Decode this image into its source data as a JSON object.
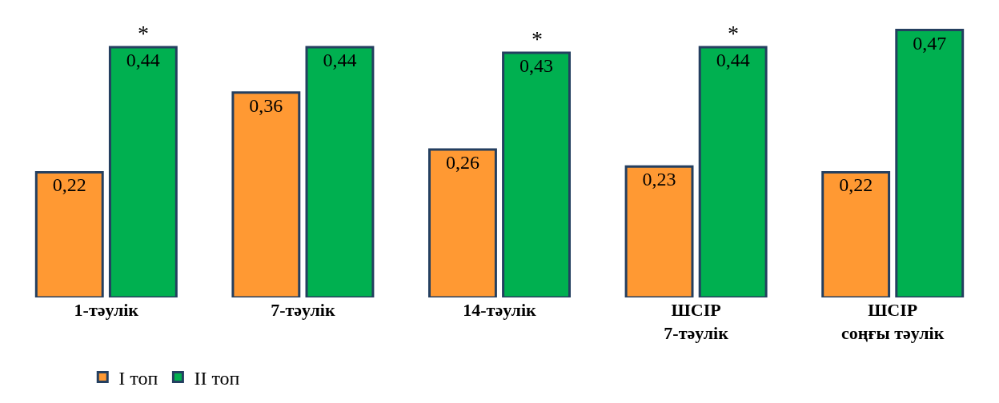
{
  "chart_data": {
    "type": "bar",
    "categories": [
      "1-тәулік",
      "7-тәулік",
      "14-тәулік",
      "ШСІР\n7-тәулік",
      "ШСІР\nсоңғы тәулік"
    ],
    "series": [
      {
        "name": "I топ",
        "color": "#ff9933",
        "values": [
          0.22,
          0.36,
          0.26,
          0.23,
          0.22
        ],
        "value_labels": [
          "0,22",
          "0,36",
          "0,26",
          "0,23",
          "0,22"
        ]
      },
      {
        "name": "II топ",
        "color": "#00b050",
        "values": [
          0.44,
          0.44,
          0.43,
          0.44,
          0.47
        ],
        "value_labels": [
          "0,44",
          "0,44",
          "0,43",
          "0,44",
          "0,47"
        ]
      }
    ],
    "tick_labels": "x",
    "legend": "bottom",
    "annotations": [
      {
        "text": "*",
        "x": "1-тәулік",
        "y": 0.44
      },
      {
        "text": "*",
        "x": "14-тәулік",
        "y": 0.43
      },
      {
        "text": "*",
        "x": "ШСІР\n7-тәулік",
        "y": 0.44
      }
    ]
  }
}
